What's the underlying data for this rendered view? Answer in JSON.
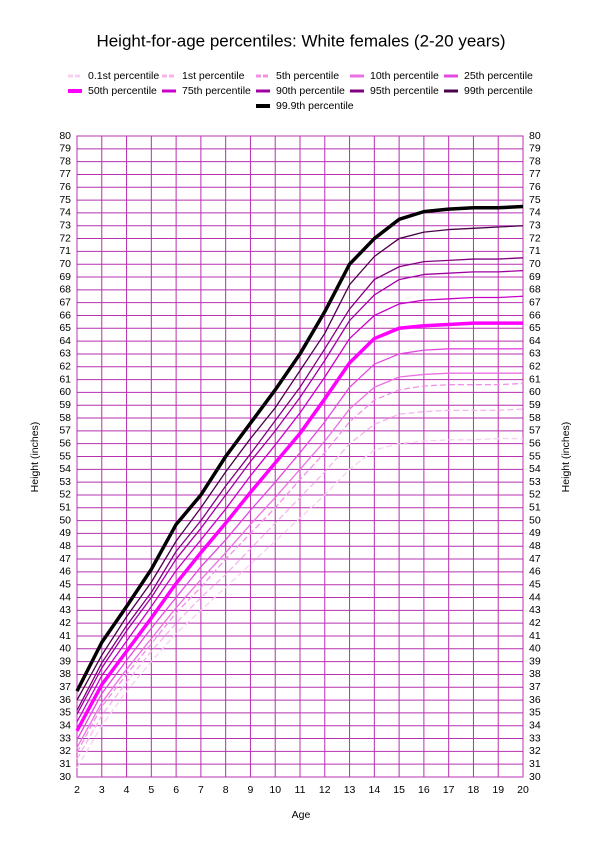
{
  "chart_data": {
    "type": "line",
    "title": "Height-for-age percentiles: White females (2-20 years)",
    "x_label": "Age",
    "y_label": "Height (inches)",
    "x": [
      2,
      3,
      4,
      5,
      6,
      7,
      8,
      9,
      10,
      11,
      12,
      13,
      14,
      15,
      16,
      17,
      18,
      19,
      20
    ],
    "xlim": [
      2,
      20
    ],
    "xticks": [
      2,
      3,
      4,
      5,
      6,
      7,
      8,
      9,
      10,
      11,
      12,
      13,
      14,
      15,
      16,
      17,
      18,
      19,
      20
    ],
    "ylim": [
      30,
      80
    ],
    "yticks": [
      30,
      31,
      32,
      33,
      34,
      35,
      36,
      37,
      38,
      39,
      40,
      41,
      42,
      43,
      44,
      45,
      46,
      47,
      48,
      49,
      50,
      51,
      52,
      53,
      54,
      55,
      56,
      57,
      58,
      59,
      60,
      61,
      62,
      63,
      64,
      65,
      66,
      67,
      68,
      69,
      70,
      71,
      72,
      73,
      74,
      75,
      76,
      77,
      78,
      79,
      80
    ],
    "grid": true,
    "grid_color": "#b830b0",
    "series": [
      {
        "name": "0.1st percentile",
        "color": "#f8d0f2",
        "dashed": true,
        "width": 1.3,
        "values": [
          30.7,
          34.0,
          36.7,
          39.0,
          41.2,
          43.0,
          44.8,
          46.6,
          48.4,
          50.2,
          52.0,
          54.0,
          55.5,
          56.0,
          56.2,
          56.3,
          56.3,
          56.4,
          56.4
        ]
      },
      {
        "name": "1st percentile",
        "color": "#f6b4ee",
        "dashed": true,
        "width": 1.3,
        "values": [
          31.4,
          34.8,
          37.4,
          39.8,
          42.0,
          44.0,
          45.8,
          47.8,
          49.8,
          51.8,
          53.8,
          56.0,
          57.5,
          58.3,
          58.5,
          58.6,
          58.6,
          58.6,
          58.7
        ]
      },
      {
        "name": "5th percentile",
        "color": "#f290e8",
        "dashed": true,
        "width": 1.3,
        "values": [
          31.9,
          35.5,
          38.0,
          40.4,
          42.8,
          44.8,
          47.0,
          49.0,
          51.0,
          53.2,
          55.3,
          57.7,
          59.4,
          60.2,
          60.5,
          60.6,
          60.6,
          60.6,
          60.7
        ]
      },
      {
        "name": "10th percentile",
        "color": "#ec70e4",
        "dashed": false,
        "width": 1.3,
        "values": [
          32.3,
          35.8,
          38.4,
          40.8,
          43.2,
          45.4,
          47.5,
          49.7,
          51.8,
          54.0,
          56.2,
          58.7,
          60.4,
          61.2,
          61.4,
          61.5,
          61.5,
          61.5,
          61.5
        ]
      },
      {
        "name": "25th percentile",
        "color": "#e448e0",
        "dashed": false,
        "width": 1.3,
        "values": [
          32.9,
          36.5,
          39.1,
          41.6,
          44.0,
          46.4,
          48.5,
          50.8,
          53.0,
          55.3,
          57.7,
          60.4,
          62.2,
          63.0,
          63.3,
          63.4,
          63.4,
          63.4,
          63.4
        ]
      },
      {
        "name": "50th percentile",
        "color": "#ff00ff",
        "dashed": false,
        "width": 3.5,
        "values": [
          33.6,
          37.2,
          39.8,
          42.4,
          45.1,
          47.5,
          49.8,
          52.2,
          54.5,
          56.8,
          59.5,
          62.3,
          64.2,
          65.0,
          65.2,
          65.3,
          65.4,
          65.4,
          65.4
        ]
      },
      {
        "name": "75th percentile",
        "color": "#c800c8",
        "dashed": false,
        "width": 1.3,
        "values": [
          34.3,
          37.9,
          40.6,
          43.3,
          46.1,
          48.5,
          50.9,
          53.5,
          55.9,
          58.4,
          61.2,
          64.2,
          66.0,
          66.9,
          67.2,
          67.3,
          67.4,
          67.4,
          67.5
        ]
      },
      {
        "name": "90th percentile",
        "color": "#a000a0",
        "dashed": false,
        "width": 1.3,
        "values": [
          34.9,
          38.5,
          41.4,
          44.0,
          47.0,
          49.4,
          52.0,
          54.6,
          57.0,
          59.6,
          62.5,
          65.6,
          67.6,
          68.8,
          69.2,
          69.3,
          69.4,
          69.4,
          69.5
        ]
      },
      {
        "name": "95th percentile",
        "color": "#800080",
        "dashed": false,
        "width": 1.3,
        "values": [
          35.2,
          38.9,
          41.8,
          44.4,
          47.6,
          50.0,
          52.7,
          55.2,
          57.8,
          60.4,
          63.4,
          66.5,
          68.8,
          69.8,
          70.2,
          70.3,
          70.4,
          70.4,
          70.5
        ]
      },
      {
        "name": "99th percentile",
        "color": "#4a0048",
        "dashed": false,
        "width": 1.3,
        "values": [
          36.0,
          39.5,
          42.5,
          45.2,
          48.4,
          51.0,
          53.8,
          56.4,
          58.8,
          61.7,
          64.6,
          68.4,
          70.6,
          72.0,
          72.5,
          72.7,
          72.8,
          72.9,
          73.0
        ]
      },
      {
        "name": "99.9th percentile",
        "color": "#000000",
        "dashed": false,
        "width": 3.5,
        "values": [
          36.7,
          40.5,
          43.3,
          46.2,
          49.7,
          52.0,
          55.0,
          57.6,
          60.2,
          63.0,
          66.3,
          70.0,
          72.0,
          73.5,
          74.1,
          74.3,
          74.4,
          74.4,
          74.5
        ]
      }
    ]
  }
}
